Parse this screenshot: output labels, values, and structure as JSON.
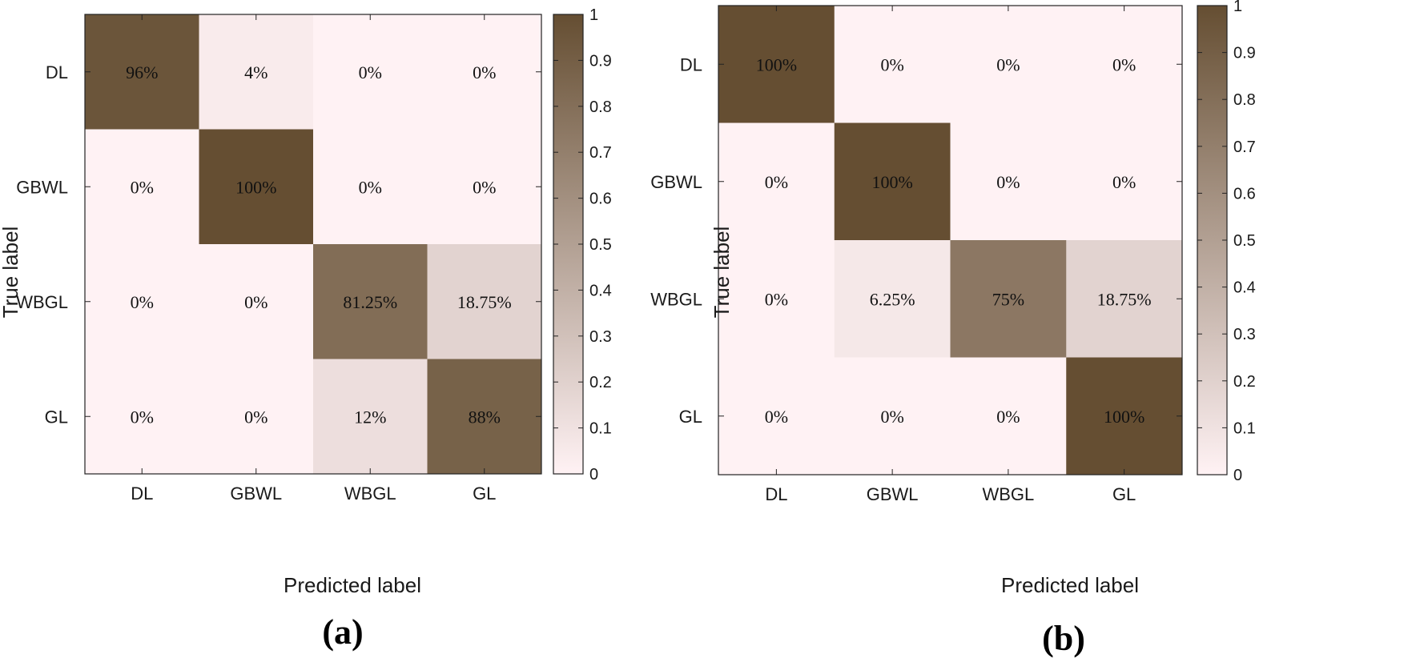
{
  "chart_data": [
    {
      "type": "heatmap",
      "panel_label": "(a)",
      "xlabel": "Predicted label",
      "ylabel": "True label",
      "categories": [
        "DL",
        "GBWL",
        "WBGL",
        "GL"
      ],
      "values": [
        [
          0.96,
          0.04,
          0,
          0
        ],
        [
          0,
          1.0,
          0,
          0
        ],
        [
          0,
          0,
          0.8125,
          0.1875
        ],
        [
          0,
          0,
          0.12,
          0.88
        ]
      ],
      "cell_labels": [
        [
          "96%",
          "4%",
          "0%",
          "0%"
        ],
        [
          "0%",
          "100%",
          "0%",
          "0%"
        ],
        [
          "0%",
          "0%",
          "81.25%",
          "18.75%"
        ],
        [
          "0%",
          "0%",
          "12%",
          "88%"
        ]
      ],
      "colorbar": {
        "range": [
          0,
          1
        ],
        "ticks": [
          "0",
          "0.1",
          "0.2",
          "0.3",
          "0.4",
          "0.5",
          "0.6",
          "0.7",
          "0.8",
          "0.9",
          "1"
        ],
        "low_color": "#FFF2F4",
        "high_color": "#654E32"
      }
    },
    {
      "type": "heatmap",
      "panel_label": "(b)",
      "xlabel": "Predicted label",
      "ylabel": "True label",
      "categories": [
        "DL",
        "GBWL",
        "WBGL",
        "GL"
      ],
      "values": [
        [
          1.0,
          0,
          0,
          0
        ],
        [
          0,
          1.0,
          0,
          0
        ],
        [
          0,
          0.0625,
          0.75,
          0.1875
        ],
        [
          0,
          0,
          0,
          1.0
        ]
      ],
      "cell_labels": [
        [
          "100%",
          "0%",
          "0%",
          "0%"
        ],
        [
          "0%",
          "100%",
          "0%",
          "0%"
        ],
        [
          "0%",
          "6.25%",
          "75%",
          "18.75%"
        ],
        [
          "0%",
          "0%",
          "0%",
          "100%"
        ]
      ],
      "colorbar": {
        "range": [
          0,
          1
        ],
        "ticks": [
          "0",
          "0.1",
          "0.2",
          "0.3",
          "0.4",
          "0.5",
          "0.6",
          "0.7",
          "0.8",
          "0.9",
          "1"
        ],
        "low_color": "#FFF2F4",
        "high_color": "#654E32"
      }
    }
  ]
}
